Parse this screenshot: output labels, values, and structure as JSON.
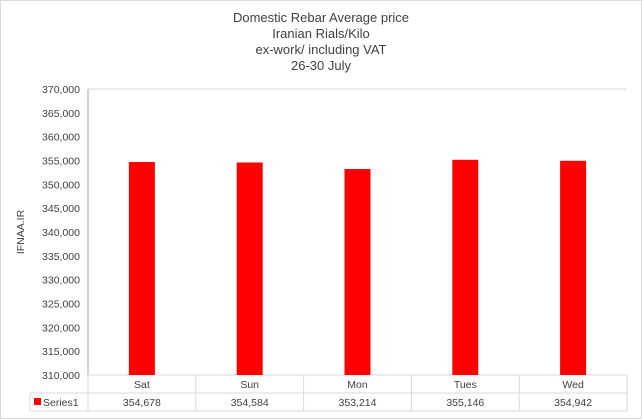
{
  "chart_data": {
    "type": "bar",
    "title": [
      "Domestic Rebar Average price",
      "Iranian Rials/Kilo",
      "ex-work/ including VAT",
      "26-30 July"
    ],
    "xlabel": "",
    "ylabel": "IFNAA.IR",
    "categories": [
      "Sat",
      "Sun",
      "Mon",
      "Tues",
      "Wed"
    ],
    "series": [
      {
        "name": "Series1",
        "values": [
          354678,
          354584,
          353214,
          355146,
          354942
        ],
        "color": "#ff0000"
      }
    ],
    "value_labels": [
      "354,678",
      "354,584",
      "353,214",
      "355,146",
      "354,942"
    ],
    "ylim": [
      310000,
      370000
    ],
    "yticks": [
      "310,000",
      "315,000",
      "320,000",
      "325,000",
      "330,000",
      "335,000",
      "340,000",
      "345,000",
      "350,000",
      "355,000",
      "360,000",
      "365,000",
      "370,000"
    ],
    "grid": false,
    "legend": "data-table"
  }
}
